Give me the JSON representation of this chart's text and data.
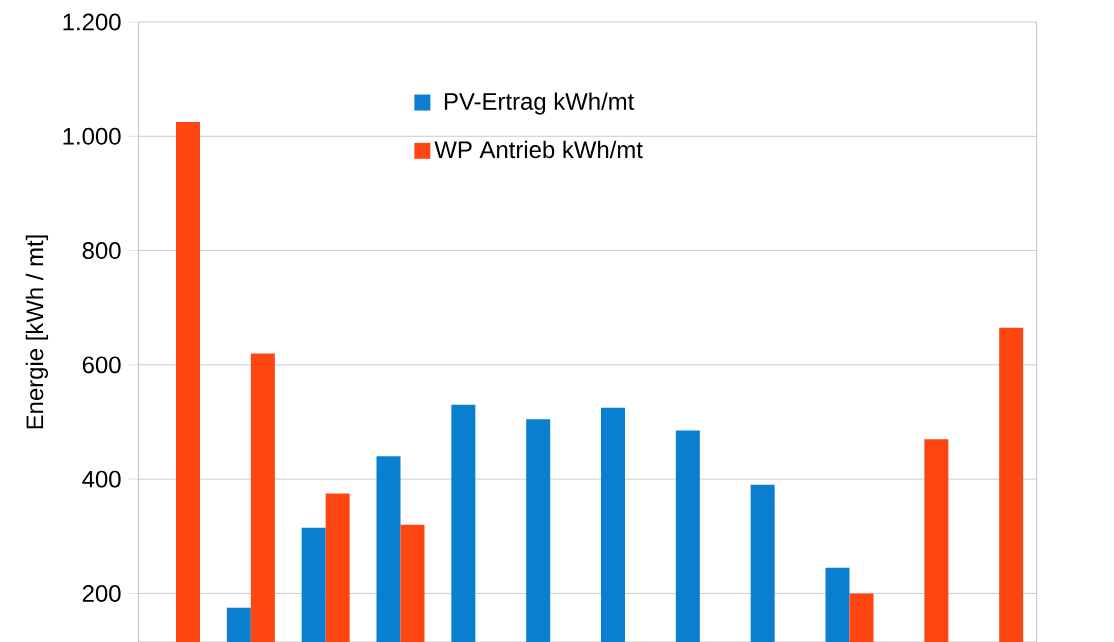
{
  "chart_data": {
    "type": "bar",
    "ylabel": "Energie [kWh / mt]",
    "categories": [
      null,
      null,
      null,
      null,
      null,
      null,
      null,
      null,
      null,
      null,
      null,
      null
    ],
    "series": [
      {
        "name": "PV-Ertrag kWh/mt",
        "color": "#0a7fd0",
        "values": [
          null,
          175,
          315,
          440,
          530,
          505,
          525,
          485,
          390,
          245,
          null,
          null
        ]
      },
      {
        "name": "WP Antrieb kWh/mt",
        "color": "#ff4512",
        "values": [
          1025,
          620,
          375,
          320,
          null,
          null,
          null,
          null,
          null,
          200,
          470,
          665
        ]
      }
    ],
    "ylim": [
      115,
      1200
    ],
    "yticks": [
      {
        "value": 200,
        "label": "200"
      },
      {
        "value": 400,
        "label": "400"
      },
      {
        "value": 600,
        "label": "600"
      },
      {
        "value": 800,
        "label": "800"
      },
      {
        "value": 1000,
        "label": "1.000"
      },
      {
        "value": 1200,
        "label": "1.200"
      }
    ],
    "grid": "y",
    "legend": "top"
  }
}
